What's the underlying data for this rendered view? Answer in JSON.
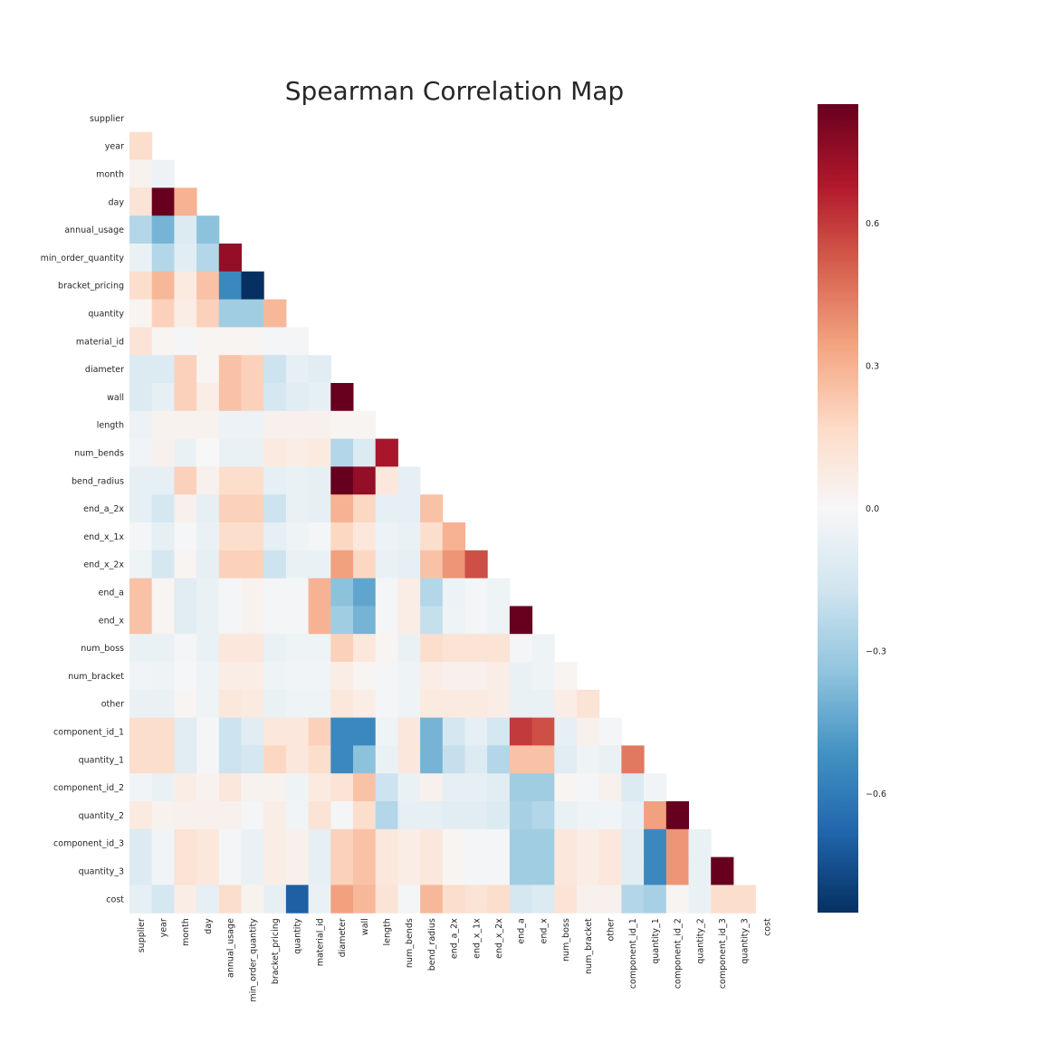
{
  "chart_data": {
    "type": "heatmap",
    "title": "Spearman Correlation Map",
    "mask": "upper-triangle-including-diagonal",
    "colormap": "RdBu_r",
    "vmin": -0.85,
    "vmax": 0.85,
    "colorbar_ticks": [
      "0.6",
      "0.3",
      "0.0",
      "−0.3",
      "−0.6"
    ],
    "colorbar_tick_values": [
      0.6,
      0.3,
      0.0,
      -0.3,
      -0.6
    ],
    "labels": [
      "supplier",
      "year",
      "month",
      "day",
      "annual_usage",
      "min_order_quantity",
      "bracket_pricing",
      "quantity",
      "material_id",
      "diameter",
      "wall",
      "length",
      "num_bends",
      "bend_radius",
      "end_a_2x",
      "end_x_1x",
      "end_x_2x",
      "end_a",
      "end_x",
      "num_boss",
      "num_bracket",
      "other",
      "component_id_1",
      "quantity_1",
      "component_id_2",
      "quantity_2",
      "component_id_3",
      "quantity_3",
      "cost"
    ],
    "matrix": [
      [],
      [
        0.15
      ],
      [
        0.03,
        -0.05
      ],
      [
        0.12,
        0.85,
        0.3
      ],
      [
        -0.25,
        -0.4,
        -0.12,
        -0.35
      ],
      [
        -0.06,
        -0.25,
        -0.1,
        -0.25,
        0.75
      ],
      [
        0.15,
        0.28,
        0.08,
        0.25,
        -0.55,
        -0.85
      ],
      [
        0.02,
        0.2,
        0.06,
        0.2,
        -0.3,
        -0.3,
        0.28
      ],
      [
        0.12,
        0.02,
        -0.02,
        0.02,
        0.02,
        0.02,
        -0.02,
        -0.02
      ],
      [
        -0.12,
        -0.12,
        0.2,
        0.02,
        0.25,
        0.2,
        -0.18,
        -0.08,
        -0.1
      ],
      [
        -0.12,
        -0.08,
        0.2,
        0.06,
        0.25,
        0.2,
        -0.15,
        -0.1,
        -0.08,
        0.85
      ],
      [
        -0.05,
        0.03,
        0.03,
        0.03,
        -0.05,
        -0.05,
        0.04,
        0.04,
        0.04,
        0.02,
        0.02
      ],
      [
        -0.03,
        0.04,
        -0.06,
        0.0,
        -0.06,
        -0.06,
        0.08,
        0.06,
        0.08,
        -0.25,
        -0.12,
        0.7
      ],
      [
        -0.08,
        -0.08,
        0.2,
        0.04,
        0.15,
        0.15,
        -0.08,
        -0.06,
        -0.08,
        0.85,
        0.75,
        0.1,
        -0.08
      ],
      [
        -0.08,
        -0.15,
        0.04,
        -0.08,
        0.2,
        0.2,
        -0.18,
        -0.06,
        -0.08,
        0.3,
        0.18,
        -0.08,
        -0.08,
        0.25
      ],
      [
        -0.02,
        -0.08,
        -0.01,
        -0.06,
        0.15,
        0.15,
        -0.08,
        -0.04,
        -0.02,
        0.18,
        0.1,
        -0.05,
        -0.06,
        0.15,
        0.3
      ],
      [
        -0.04,
        -0.15,
        0.02,
        -0.08,
        0.2,
        0.2,
        -0.18,
        -0.06,
        -0.06,
        0.35,
        0.18,
        -0.06,
        -0.08,
        0.25,
        0.38,
        0.55
      ],
      [
        0.25,
        0.02,
        -0.1,
        -0.06,
        -0.02,
        0.03,
        -0.02,
        -0.02,
        0.3,
        -0.35,
        -0.45,
        -0.02,
        0.06,
        -0.25,
        -0.05,
        -0.02,
        -0.04
      ],
      [
        0.25,
        0.02,
        -0.1,
        -0.06,
        -0.02,
        0.03,
        -0.02,
        -0.02,
        0.3,
        -0.3,
        -0.4,
        -0.02,
        0.06,
        -0.2,
        -0.04,
        -0.02,
        -0.04,
        0.85
      ],
      [
        -0.06,
        -0.06,
        -0.02,
        -0.06,
        0.1,
        0.1,
        -0.06,
        -0.04,
        -0.04,
        0.2,
        0.1,
        0.02,
        -0.06,
        0.15,
        0.12,
        0.12,
        0.12,
        -0.02,
        -0.04
      ],
      [
        -0.03,
        -0.04,
        -0.01,
        -0.04,
        0.06,
        0.06,
        -0.04,
        -0.03,
        -0.03,
        0.06,
        0.02,
        -0.02,
        -0.04,
        0.06,
        0.04,
        0.04,
        0.06,
        -0.06,
        -0.04,
        0.02
      ],
      [
        -0.06,
        -0.06,
        0.02,
        -0.04,
        0.1,
        0.08,
        -0.06,
        -0.04,
        -0.04,
        0.1,
        0.06,
        -0.02,
        -0.04,
        0.08,
        0.08,
        0.08,
        0.06,
        -0.06,
        -0.06,
        0.06,
        0.12
      ],
      [
        0.15,
        0.15,
        -0.1,
        -0.02,
        -0.18,
        -0.1,
        0.1,
        0.1,
        0.2,
        -0.55,
        -0.55,
        -0.04,
        0.1,
        -0.4,
        -0.15,
        -0.08,
        -0.15,
        0.6,
        0.55,
        -0.08,
        0.04,
        -0.02
      ],
      [
        0.15,
        0.15,
        -0.1,
        -0.02,
        -0.18,
        -0.15,
        0.18,
        0.1,
        0.15,
        -0.55,
        -0.35,
        -0.06,
        0.1,
        -0.4,
        -0.2,
        -0.12,
        -0.25,
        0.25,
        0.25,
        -0.1,
        -0.04,
        -0.06,
        0.45
      ],
      [
        -0.03,
        -0.06,
        0.06,
        0.03,
        0.1,
        0.03,
        0.03,
        -0.04,
        0.08,
        0.12,
        0.25,
        -0.18,
        -0.06,
        0.04,
        -0.08,
        -0.08,
        -0.1,
        -0.3,
        -0.3,
        0.02,
        -0.02,
        0.04,
        -0.12,
        -0.03
      ],
      [
        0.08,
        0.03,
        0.04,
        0.04,
        0.04,
        -0.02,
        0.06,
        -0.03,
        0.12,
        -0.02,
        0.15,
        -0.25,
        -0.08,
        -0.08,
        -0.1,
        -0.1,
        -0.12,
        -0.28,
        -0.25,
        -0.06,
        -0.04,
        -0.03,
        -0.08,
        0.35,
        0.85
      ],
      [
        -0.12,
        -0.03,
        0.12,
        0.1,
        -0.02,
        -0.06,
        0.06,
        0.04,
        -0.08,
        0.2,
        0.25,
        0.1,
        0.06,
        0.1,
        0.02,
        -0.02,
        -0.02,
        -0.3,
        -0.3,
        0.1,
        0.06,
        0.1,
        -0.1,
        -0.55,
        0.38,
        -0.06
      ],
      [
        -0.12,
        -0.03,
        0.12,
        0.1,
        -0.02,
        -0.06,
        0.06,
        0.04,
        -0.08,
        0.2,
        0.25,
        0.1,
        0.06,
        0.1,
        0.02,
        -0.02,
        -0.02,
        -0.3,
        -0.3,
        0.1,
        0.06,
        0.1,
        -0.1,
        -0.55,
        0.38,
        -0.06,
        0.85
      ],
      [
        -0.08,
        -0.15,
        0.06,
        -0.08,
        0.15,
        0.03,
        -0.08,
        -0.7,
        -0.06,
        0.35,
        0.28,
        0.12,
        -0.02,
        0.28,
        0.15,
        0.12,
        0.15,
        -0.15,
        -0.12,
        0.12,
        0.04,
        0.04,
        -0.25,
        -0.28,
        0.02,
        -0.06,
        0.15,
        0.15
      ]
    ]
  }
}
